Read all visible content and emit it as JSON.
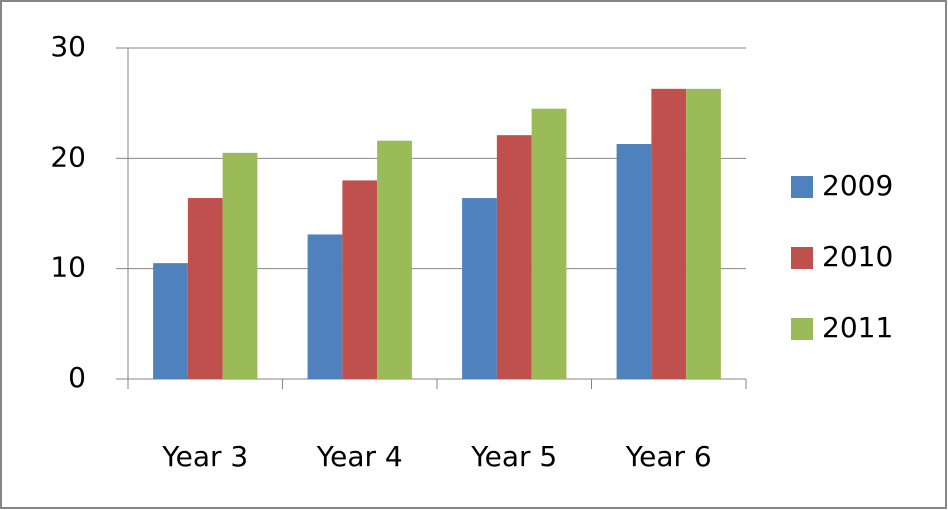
{
  "chart_data": {
    "type": "bar",
    "categories": [
      "Year 3",
      "Year 4",
      "Year 5",
      "Year 6"
    ],
    "series": [
      {
        "name": "2009",
        "color": "#4f81bd",
        "values": [
          10.5,
          13.1,
          16.4,
          21.3
        ]
      },
      {
        "name": "2010",
        "color": "#c0504d",
        "values": [
          16.4,
          18.0,
          22.1,
          26.3
        ]
      },
      {
        "name": "2011",
        "color": "#9bbb59",
        "values": [
          20.5,
          21.6,
          24.5,
          26.3
        ]
      }
    ],
    "ylim": [
      0,
      30
    ],
    "yticks": [
      0,
      10,
      20,
      30
    ],
    "grid": true,
    "legend": "right"
  }
}
